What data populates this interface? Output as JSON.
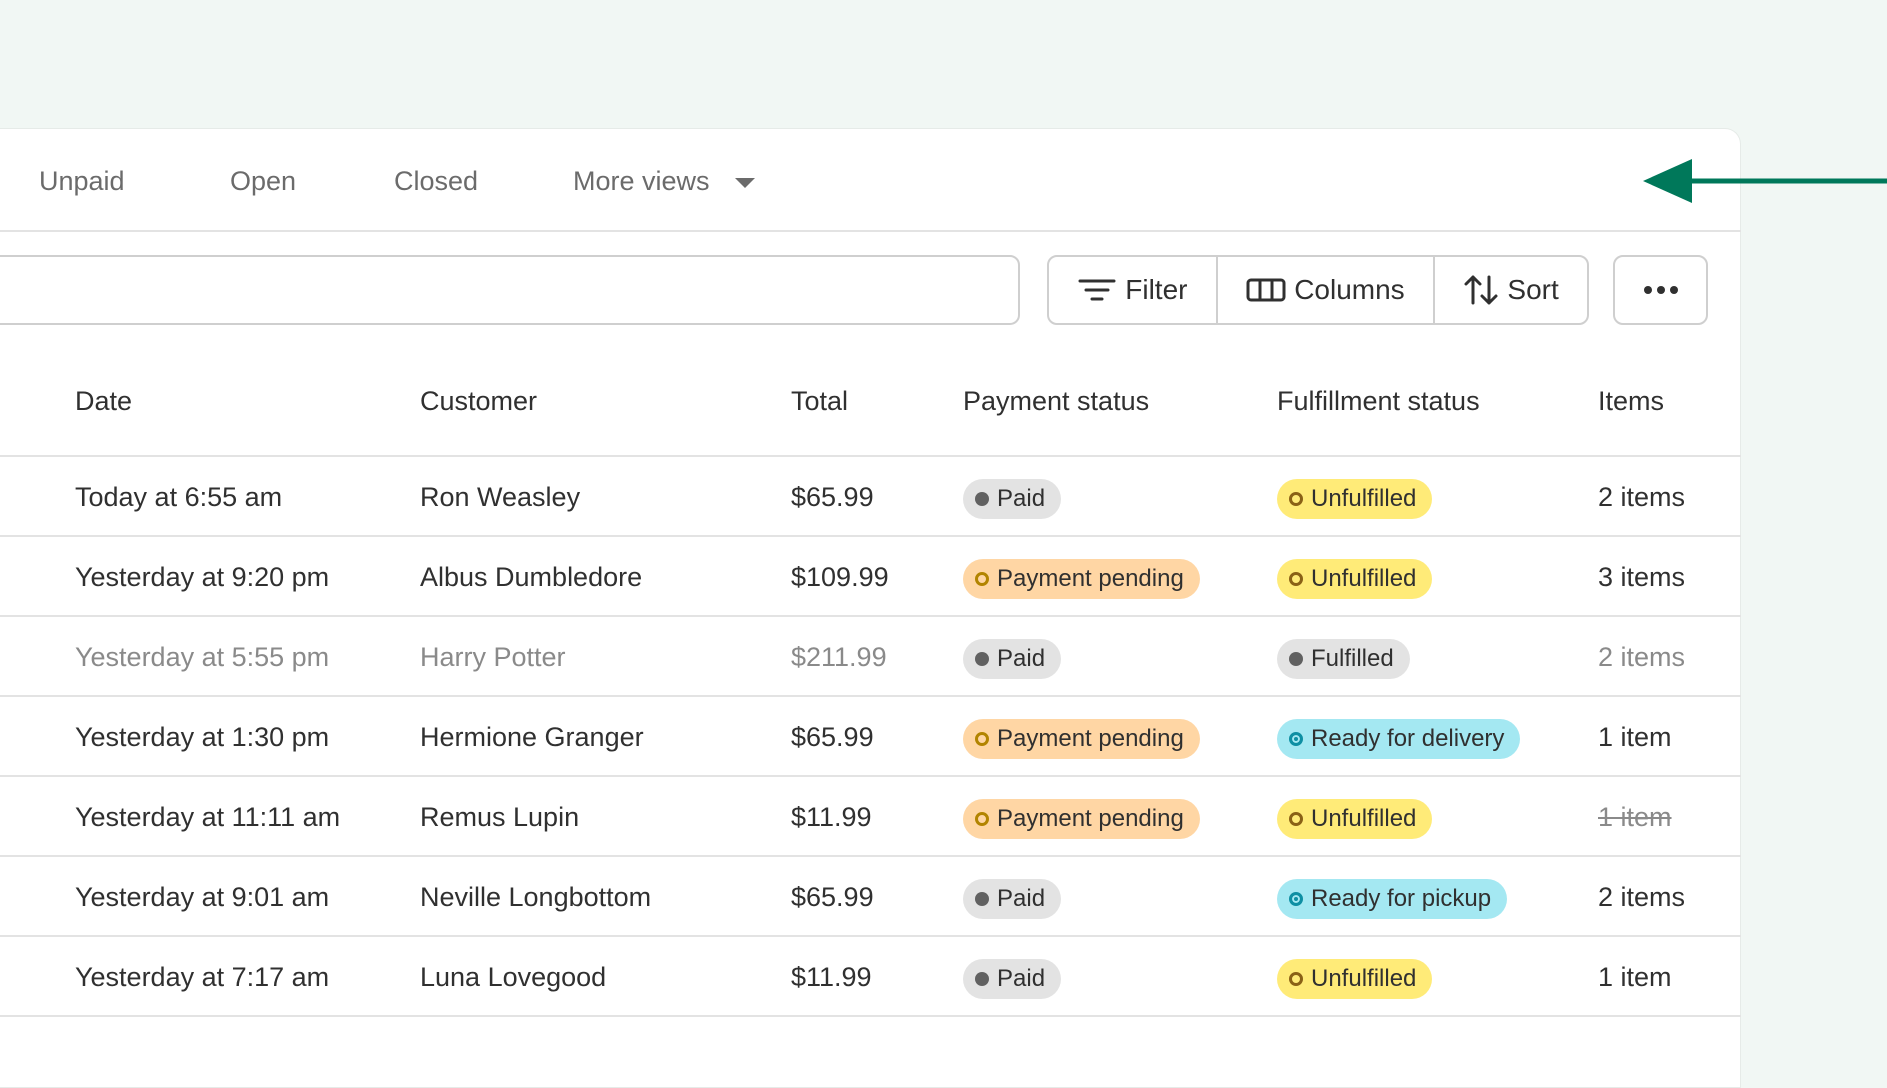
{
  "tabs": [
    "Unpaid",
    "Open",
    "Closed",
    "More views"
  ],
  "toolbar": {
    "filter": "Filter",
    "columns": "Columns",
    "sort": "Sort"
  },
  "table": {
    "headers": [
      "Date",
      "Customer",
      "Total",
      "Payment status",
      "Fulfillment status",
      "Items"
    ],
    "rows": [
      [
        "Today at 6:55 am",
        "Ron Weasley",
        "$65.99",
        "Paid",
        "Unfulfilled",
        "2 items"
      ],
      [
        "Yesterday at 9:20 pm",
        "Albus Dumbledore",
        "$109.99",
        "Payment pending",
        "Unfulfilled",
        "3 items"
      ],
      [
        "Yesterday at 5:55 pm",
        "Harry Potter",
        "$211.99",
        "Paid",
        "Fulfilled",
        "2 items"
      ],
      [
        "Yesterday at 1:30 pm",
        "Hermione Granger",
        "$65.99",
        "Payment pending",
        "Ready for delivery",
        "1 item"
      ],
      [
        "Yesterday at 11:11 am",
        "Remus Lupin",
        "$11.99",
        "Payment pending",
        "Unfulfilled",
        "1 item"
      ],
      [
        "Yesterday at 9:01 am",
        "Neville Longbottom",
        "$65.99",
        "Paid",
        "Ready for pickup",
        "2 items"
      ],
      [
        "Yesterday at 7:17 am",
        "Luna Lovegood",
        "$11.99",
        "Paid",
        "Unfulfilled",
        "1 item"
      ]
    ]
  }
}
